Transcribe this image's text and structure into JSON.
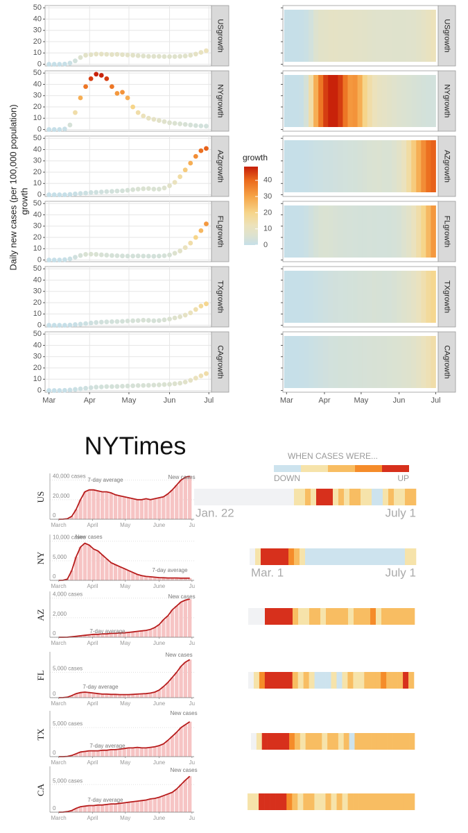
{
  "chart_data": [
    {
      "type": "facet-scatter",
      "ylabel": "Daily new cases (per 100,000 population)",
      "ylabel2": "growth",
      "x": [
        0,
        4,
        8,
        12,
        16,
        20,
        24,
        28,
        32,
        36,
        40,
        44,
        48,
        52,
        56,
        60,
        64,
        68,
        72,
        76,
        80,
        84,
        88,
        92,
        96,
        100,
        104,
        108,
        112,
        116,
        120
      ],
      "xlim": [
        -3,
        124
      ],
      "xticks": [
        {
          "value": 0,
          "label": "Mar"
        },
        {
          "value": 31,
          "label": "Apr"
        },
        {
          "value": 61,
          "label": "May"
        },
        {
          "value": 92,
          "label": "Jun"
        },
        {
          "value": 122,
          "label": "Jul"
        }
      ],
      "ylim": [
        -1.5,
        52
      ],
      "yticks": [
        0,
        10,
        20,
        30,
        40,
        50
      ],
      "grid": true,
      "colorscale": [
        {
          "value": 0,
          "color": "#c6dfe8"
        },
        {
          "value": 6,
          "color": "#dde2cf"
        },
        {
          "value": 12,
          "color": "#ece2bb"
        },
        {
          "value": 20,
          "color": "#f6d58a"
        },
        {
          "value": 30,
          "color": "#f6a447"
        },
        {
          "value": 40,
          "color": "#eb6a1c"
        },
        {
          "value": 48,
          "color": "#c8220a"
        }
      ],
      "series": [
        {
          "name": "USgrowth",
          "values": [
            0,
            0,
            0,
            0.2,
            1,
            3,
            6,
            8,
            8.5,
            9,
            9,
            8.8,
            8.6,
            8.8,
            8.5,
            8.2,
            8,
            7.6,
            7.3,
            7,
            7,
            7,
            6.8,
            6.8,
            6.8,
            7,
            7.3,
            8,
            9,
            10.5,
            12
          ]
        },
        {
          "name": "NYgrowth",
          "values": [
            0,
            0,
            0,
            0.5,
            4,
            15,
            28,
            38,
            45,
            49,
            48,
            45,
            38,
            32,
            33,
            28,
            20,
            15,
            12,
            10,
            9,
            8,
            7,
            6,
            5.5,
            5,
            4.5,
            4,
            3.5,
            3.2,
            3
          ]
        },
        {
          "name": "AZgrowth",
          "values": [
            0,
            0,
            0,
            0,
            0.3,
            0.8,
            1.2,
            1.5,
            2,
            2.2,
            2.5,
            2.8,
            3,
            3.3,
            3.5,
            4,
            4.5,
            5,
            5.3,
            5.5,
            5,
            5,
            6,
            8,
            11,
            16,
            22,
            28,
            34,
            39,
            41
          ]
        },
        {
          "name": "FLgrowth",
          "values": [
            0,
            0,
            0,
            0.3,
            1,
            2.5,
            4,
            5,
            5.2,
            5,
            4.6,
            4.3,
            4,
            3.8,
            3.6,
            3.5,
            3.5,
            3.6,
            3.5,
            3.4,
            3.3,
            3.5,
            3.8,
            4.5,
            6,
            8,
            11,
            15,
            20,
            26,
            32
          ]
        },
        {
          "name": "TXgrowth",
          "values": [
            0,
            0,
            0,
            0,
            0.2,
            0.6,
            1,
            1.5,
            2,
            2.5,
            2.8,
            3,
            3.2,
            3.3,
            3.5,
            3.8,
            4,
            4.2,
            4.5,
            4.3,
            4,
            4.2,
            4.8,
            5.5,
            6.5,
            7.5,
            9,
            11,
            14,
            17,
            19
          ]
        },
        {
          "name": "CAgrowth",
          "values": [
            0,
            0,
            0,
            0.2,
            0.5,
            1,
            1.5,
            2,
            2.5,
            3,
            3.2,
            3.5,
            3.5,
            3.6,
            3.8,
            4,
            4.2,
            4.4,
            4.5,
            4.6,
            4.8,
            5,
            5.3,
            5.5,
            6,
            6.5,
            7.5,
            9,
            11,
            13,
            15
          ]
        }
      ]
    },
    {
      "type": "facet-heatmap",
      "facets": [
        "USgrowth",
        "NYgrowth",
        "AZgrowth",
        "FLgrowth",
        "TXgrowth",
        "CAgrowth"
      ],
      "xlim": [
        -3,
        124
      ],
      "xticks": [
        {
          "value": 0,
          "label": "Mar"
        },
        {
          "value": 31,
          "label": "Apr"
        },
        {
          "value": 61,
          "label": "May"
        },
        {
          "value": 92,
          "label": "Jun"
        },
        {
          "value": 122,
          "label": "Jul"
        }
      ],
      "legend_title": "growth",
      "legend_lim": [
        0,
        48.5
      ],
      "legend_ticks": [
        0,
        10,
        20,
        30,
        40
      ]
    },
    {
      "type": "small-multiple-bars",
      "title": "NYTimes",
      "x": [
        0,
        4,
        8,
        12,
        16,
        20,
        24,
        28,
        32,
        36,
        40,
        44,
        48,
        52,
        56,
        60,
        64,
        68,
        72,
        76,
        80,
        84,
        88,
        92,
        96,
        100,
        104,
        108,
        112,
        116,
        120
      ],
      "xlim": [
        -8,
        124
      ],
      "xticks": [
        {
          "value": 0,
          "label": "March"
        },
        {
          "value": 31,
          "label": "April"
        },
        {
          "value": 61,
          "label": "May"
        },
        {
          "value": 92,
          "label": "June"
        },
        {
          "value": 122,
          "label": "Ju"
        }
      ],
      "color": "#f6c4c4",
      "line_color": "#b71c1c",
      "panels": [
        {
          "label": "US",
          "ylim": [
            0,
            44000
          ],
          "yticks": [
            0,
            {
              "value": 20000,
              "label": "20,000"
            },
            {
              "value": 40000,
              "label": "40,000 cases"
            }
          ],
          "annotations": [
            "7-day average",
            "New cases"
          ],
          "values": [
            0,
            50,
            500,
            3000,
            10000,
            20000,
            28000,
            30000,
            30000,
            29000,
            28000,
            28000,
            27000,
            25000,
            24000,
            23000,
            22000,
            21000,
            20000,
            20000,
            21000,
            20000,
            21000,
            22000,
            23000,
            26000,
            30000,
            35000,
            40000,
            43000,
            44000
          ]
        },
        {
          "label": "NY",
          "ylim": [
            0,
            11000
          ],
          "yticks": [
            0,
            {
              "value": 5000,
              "label": "5,000"
            },
            {
              "value": 10000,
              "label": "10,000 cases"
            }
          ],
          "annotations": [
            "New cases",
            "7-day average"
          ],
          "values": [
            0,
            10,
            300,
            2500,
            6000,
            8500,
            9500,
            9000,
            8000,
            7500,
            6500,
            5500,
            4500,
            4000,
            3500,
            3000,
            2500,
            2000,
            1500,
            1200,
            1000,
            900,
            800,
            700,
            650,
            600,
            600,
            600,
            550,
            550,
            550
          ]
        },
        {
          "label": "AZ",
          "ylim": [
            0,
            4400
          ],
          "yticks": [
            0,
            {
              "value": 2000,
              "label": "2,000"
            },
            {
              "value": 4000,
              "label": "4,000 cases"
            }
          ],
          "annotations": [
            "New cases",
            "7-day average"
          ],
          "values": [
            0,
            0,
            10,
            50,
            100,
            150,
            200,
            250,
            300,
            300,
            350,
            350,
            400,
            400,
            450,
            450,
            500,
            550,
            600,
            650,
            700,
            800,
            1000,
            1300,
            1800,
            2200,
            2800,
            3200,
            3600,
            3800,
            3900
          ]
        },
        {
          "label": "FL",
          "ylim": [
            0,
            8500
          ],
          "yticks": [
            0,
            {
              "value": 5000,
              "label": "5,000 cases"
            }
          ],
          "annotations": [
            "7-day average",
            "New cases"
          ],
          "values": [
            0,
            10,
            100,
            400,
            800,
            1000,
            1100,
            1000,
            900,
            800,
            700,
            700,
            650,
            650,
            600,
            600,
            600,
            650,
            700,
            750,
            800,
            900,
            1100,
            1500,
            2200,
            3000,
            4000,
            5000,
            6200,
            7000,
            7500
          ]
        },
        {
          "label": "TX",
          "ylim": [
            0,
            7400
          ],
          "yticks": [
            0,
            {
              "value": 5000,
              "label": "5,000 cases"
            }
          ],
          "annotations": [
            "7-day average",
            "New cases"
          ],
          "values": [
            0,
            5,
            50,
            200,
            500,
            800,
            900,
            1000,
            1000,
            1000,
            1100,
            1100,
            1200,
            1200,
            1300,
            1400,
            1500,
            1500,
            1600,
            1500,
            1500,
            1600,
            1700,
            1900,
            2200,
            2800,
            3500,
            4200,
            5000,
            5500,
            6000
          ]
        },
        {
          "label": "CA",
          "ylim": [
            0,
            7800
          ],
          "yticks": [
            0,
            {
              "value": 5000,
              "label": "5,000 cases"
            }
          ],
          "annotations": [
            "7-day average",
            "New cases"
          ],
          "values": [
            0,
            10,
            100,
            300,
            700,
            1000,
            1100,
            1200,
            1200,
            1300,
            1300,
            1400,
            1500,
            1500,
            1600,
            1700,
            1800,
            1900,
            2000,
            2100,
            2200,
            2400,
            2500,
            2700,
            3000,
            3300,
            3600,
            4200,
            5000,
            5800,
            6500
          ]
        }
      ]
    },
    {
      "type": "level-strips",
      "legend_title": "WHEN CASES WERE...",
      "legend_low": "DOWN",
      "legend_high": "UP",
      "colors": [
        "#cde3ee",
        "#f6e3aa",
        "#f8bd62",
        "#f58c2a",
        "#d7301c"
      ],
      "strips": [
        {
          "label": "US",
          "start_label": "Jan. 22",
          "end_label": "July 1",
          "levels": [
            null,
            null,
            null,
            null,
            null,
            null,
            null,
            null,
            null,
            null,
            null,
            null,
            null,
            null,
            null,
            null,
            null,
            null,
            1,
            1,
            2,
            1,
            4,
            4,
            4,
            1,
            2,
            1,
            2,
            2,
            1,
            1,
            0,
            0,
            1,
            2,
            1,
            1,
            2,
            2
          ]
        },
        {
          "label": "NY",
          "start_label": "Mar. 1",
          "end_label": "July 1",
          "levels": [
            null,
            1,
            4,
            4,
            4,
            4,
            4,
            3,
            2,
            1,
            0,
            0,
            0,
            0,
            0,
            0,
            0,
            0,
            0,
            0,
            0,
            0,
            0,
            0,
            0,
            0,
            0,
            0,
            1,
            1
          ]
        },
        {
          "label": "AZ",
          "levels": [
            null,
            null,
            null,
            4,
            4,
            4,
            4,
            4,
            2,
            1,
            1,
            2,
            2,
            1,
            2,
            2,
            2,
            2,
            1,
            2,
            2,
            2,
            3,
            1,
            2,
            2,
            2,
            2,
            2,
            2
          ]
        },
        {
          "label": "FL",
          "levels": [
            null,
            1,
            3,
            4,
            4,
            4,
            4,
            4,
            2,
            1,
            2,
            1,
            0,
            0,
            0,
            1,
            0,
            1,
            2,
            1,
            1,
            2,
            2,
            2,
            3,
            2,
            2,
            2,
            4,
            2
          ]
        },
        {
          "label": "TX",
          "levels": [
            null,
            1,
            4,
            4,
            4,
            4,
            4,
            3,
            2,
            1,
            2,
            2,
            2,
            1,
            2,
            2,
            1,
            2,
            0,
            2,
            2,
            2,
            2,
            2,
            2,
            2,
            2,
            2,
            2,
            2
          ]
        },
        {
          "label": "CA",
          "levels": [
            1,
            1,
            4,
            4,
            4,
            4,
            4,
            3,
            2,
            1,
            2,
            2,
            1,
            1,
            2,
            1,
            2,
            1,
            2,
            2,
            2,
            2,
            2,
            2,
            2,
            2,
            2,
            2,
            2,
            2
          ]
        }
      ]
    }
  ]
}
